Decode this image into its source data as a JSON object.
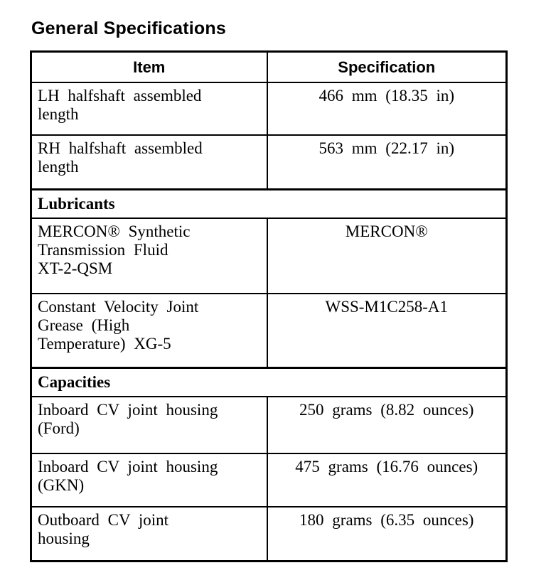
{
  "page_title": "General Specifications",
  "colors": {
    "text": "#000000",
    "background": "#ffffff",
    "border": "#000000"
  },
  "table": {
    "headers": {
      "item": "Item",
      "specification": "Specification"
    },
    "rows": [
      {
        "type": "data",
        "item": "LH halfshaft assembled length",
        "item_lines": [
          "LH halfshaft assembled",
          "length"
        ],
        "spec": "466 mm (18.35 in)"
      },
      {
        "type": "data",
        "item": "RH halfshaft assembled length",
        "item_lines": [
          "RH halfshaft assembled",
          "length"
        ],
        "spec": "563 mm (22.17 in)"
      },
      {
        "type": "section",
        "label": "Lubricants"
      },
      {
        "type": "data",
        "item": "MERCON® Synthetic Transmission Fluid XT-2-QSM",
        "item_lines": [
          "MERCON® Synthetic",
          "Transmission Fluid",
          "XT-2-QSM"
        ],
        "spec": "MERCON®"
      },
      {
        "type": "data",
        "item": "Constant Velocity Joint Grease (High Temperature) XG-5",
        "item_lines": [
          "Constant Velocity Joint",
          "Grease (High",
          "Temperature) XG-5"
        ],
        "spec": "WSS-M1C258-A1"
      },
      {
        "type": "section",
        "label": "Capacities"
      },
      {
        "type": "data",
        "item": "Inboard CV joint housing (Ford)",
        "item_lines": [
          "Inboard CV joint housing",
          "(Ford)"
        ],
        "spec": "250 grams (8.82 ounces)"
      },
      {
        "type": "data",
        "item": "Inboard CV joint housing (GKN)",
        "item_lines": [
          "Inboard CV joint housing",
          "(GKN)"
        ],
        "spec": "475 grams (16.76 ounces)"
      },
      {
        "type": "data",
        "item": "Outboard CV joint housing",
        "item_lines": [
          "Outboard CV joint",
          "housing"
        ],
        "spec": "180 grams (6.35 ounces)"
      }
    ]
  }
}
